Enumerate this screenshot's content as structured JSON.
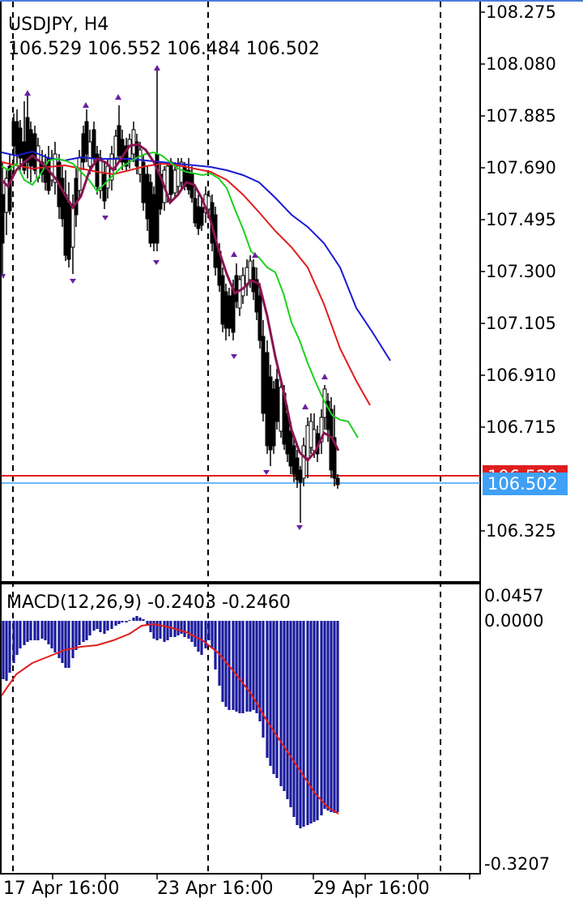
{
  "header": {
    "symbol": "USDJPY, H4",
    "ohlc": "106.529 106.552 106.484 106.502"
  },
  "price_axis": {
    "labels": [
      "108.275",
      "108.080",
      "107.885",
      "107.690",
      "107.495",
      "107.300",
      "107.105",
      "106.910",
      "106.715",
      "106.325"
    ]
  },
  "price_tags": {
    "ask": {
      "text": "106.529",
      "color": "#e01e1e"
    },
    "bid": {
      "text": "106.502",
      "color": "#3fa0f5"
    }
  },
  "macd": {
    "label": "MACD(12,26,9) -0.2403 -0.2460",
    "axis_top": "0.0457",
    "axis_zero": "0.0000",
    "axis_bottom": "-0.3207",
    "histogram_color": "#1a1a9c",
    "signal_color": "#e01e1e"
  },
  "time_axis": {
    "labels": [
      "17 Apr 16:00",
      "23 Apr 16:00",
      "29 Apr 16:00"
    ]
  },
  "colors": {
    "ma_blue": "#1a1ad6",
    "ma_red": "#e01e1e",
    "ma_green": "#1ed01e",
    "ma_purple": "#8a1450",
    "fractal": "#6a1fa0"
  }
}
